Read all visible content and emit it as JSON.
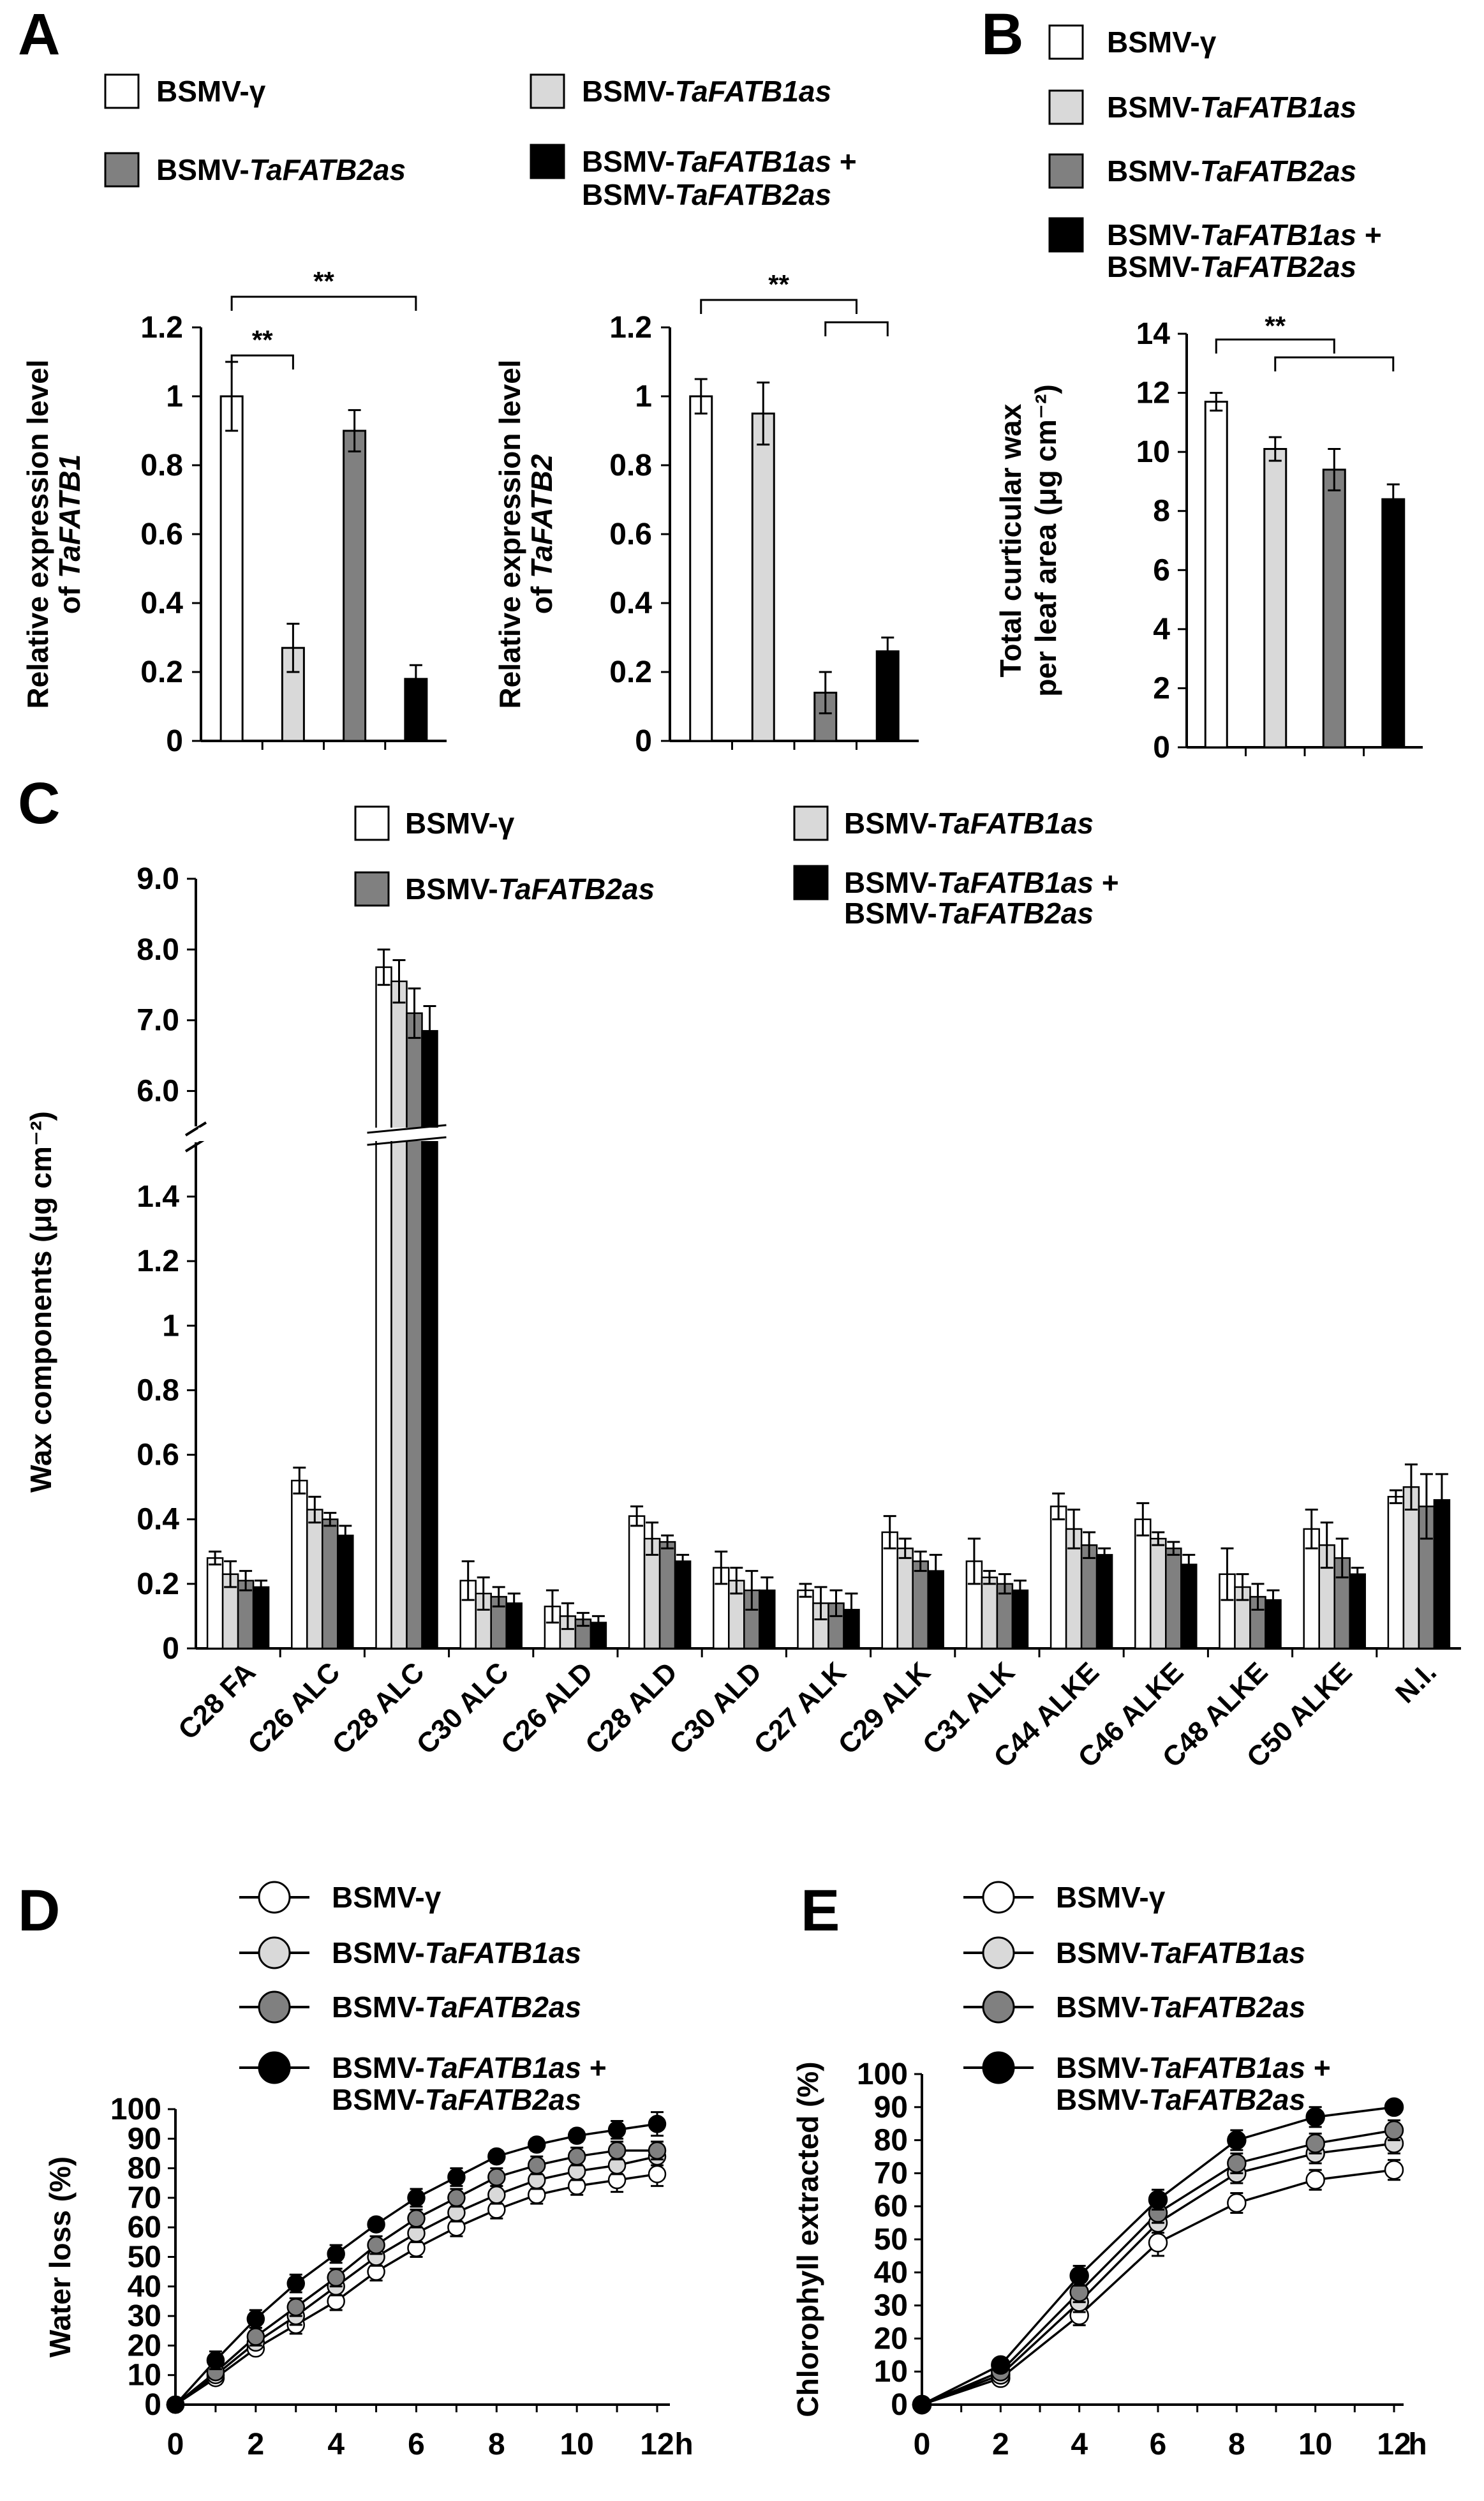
{
  "colors": {
    "BSMV-γ": "#ffffff",
    "BSMV-TaFATB1as": "#d9d9d9",
    "BSMV-TaFATB2as": "#808080",
    "BSMV-TaFATB1as+BSMV-TaFATB2as": "#000000"
  },
  "chart_data": [
    {
      "panel": "A",
      "type": "bar",
      "legend": [
        {
          "name_plain": "BSMV-",
          "name_ital": "γ",
          "name2_plain": "",
          "name2_ital": ""
        },
        {
          "name_plain": "BSMV-",
          "name_ital": "TaFATB1as",
          "name2_plain": "",
          "name2_ital": ""
        },
        {
          "name_plain": "BSMV-",
          "name_ital": "TaFATB2as",
          "name2_plain": "",
          "name2_ital": ""
        },
        {
          "name_plain": "BSMV-",
          "name_ital": "TaFATB1as",
          "name_suffix": " +",
          "name2_plain": "BSMV-",
          "name2_ital": "TaFATB2as"
        }
      ],
      "subcharts": [
        {
          "ylabel_line1": "Relative expression level",
          "ylabel_line2_plain": "of ",
          "ylabel_line2_ital": "TaFATB1",
          "ylim": [
            0,
            1.2
          ],
          "ticks": [
            "0",
            "0.2",
            "0.4",
            "0.6",
            "0.8",
            "1",
            "1.2"
          ],
          "series": [
            {
              "name": "BSMV-γ",
              "value": 1.0,
              "err": 0.1
            },
            {
              "name": "BSMV-TaFATB1as",
              "value": 0.27,
              "err": 0.07
            },
            {
              "name": "BSMV-TaFATB2as",
              "value": 0.9,
              "err": 0.06
            },
            {
              "name": "BSMV-TaFATB1as+BSMV-TaFATB2as",
              "value": 0.18,
              "err": 0.04
            }
          ],
          "significance": [
            "**",
            "**"
          ]
        },
        {
          "ylabel_line1": "Relative expression level",
          "ylabel_line2_plain": "of ",
          "ylabel_line2_ital": "TaFATB2",
          "ylim": [
            0,
            1.2
          ],
          "ticks": [
            "0",
            "0.2",
            "0.4",
            "0.6",
            "0.8",
            "1",
            "1.2"
          ],
          "series": [
            {
              "name": "BSMV-γ",
              "value": 1.0,
              "err": 0.05
            },
            {
              "name": "BSMV-TaFATB1as",
              "value": 0.95,
              "err": 0.09
            },
            {
              "name": "BSMV-TaFATB2as",
              "value": 0.14,
              "err": 0.06
            },
            {
              "name": "BSMV-TaFATB1as+BSMV-TaFATB2as",
              "value": 0.26,
              "err": 0.04
            }
          ],
          "significance": [
            "**"
          ]
        }
      ]
    },
    {
      "panel": "B",
      "type": "bar",
      "ylabel_line1": "Total curticular wax",
      "ylabel_line2": "per leaf area  (μg cm⁻²)",
      "ylim": [
        0,
        14
      ],
      "ticks": [
        "0",
        "2",
        "4",
        "6",
        "8",
        "10",
        "12",
        "14"
      ],
      "series": [
        {
          "name": "BSMV-γ",
          "value": 11.7,
          "err": 0.3
        },
        {
          "name": "BSMV-TaFATB1as",
          "value": 10.1,
          "err": 0.4
        },
        {
          "name": "BSMV-TaFATB2as",
          "value": 9.4,
          "err": 0.7
        },
        {
          "name": "BSMV-TaFATB1as+BSMV-TaFATB2as",
          "value": 8.4,
          "err": 0.5
        }
      ],
      "significance": [
        "**"
      ]
    },
    {
      "panel": "C",
      "type": "bar",
      "ylabel": "Wax components (μg cm⁻²)",
      "ylim_lower": [
        0,
        1.5
      ],
      "ylim_upper": [
        5.5,
        9.0
      ],
      "ticks_lower": [
        "0",
        "0.2",
        "0.4",
        "0.6",
        "0.8",
        "1",
        "1.2",
        "1.4"
      ],
      "ticks_upper": [
        "6.0",
        "7.0",
        "8.0",
        "9.0"
      ],
      "categories": [
        "C28 FA",
        "C26 ALC",
        "C28 ALC",
        "C30 ALC",
        "C26 ALD",
        "C28 ALD",
        "C30 ALD",
        "C27 ALK",
        "C29 ALK",
        "C31 ALK",
        "C44 ALKE",
        "C46 ALKE",
        "C48 ALKE",
        "C50 ALKE",
        "N.I."
      ],
      "series": [
        {
          "name": "BSMV-γ",
          "values": [
            0.28,
            0.52,
            7.75,
            0.21,
            0.13,
            0.41,
            0.25,
            0.18,
            0.36,
            0.27,
            0.44,
            0.4,
            0.23,
            0.37,
            0.47
          ],
          "err": [
            0.02,
            0.04,
            0.25,
            0.06,
            0.05,
            0.03,
            0.05,
            0.02,
            0.05,
            0.07,
            0.04,
            0.05,
            0.08,
            0.06,
            0.02
          ]
        },
        {
          "name": "BSMV-TaFATB1as",
          "values": [
            0.23,
            0.43,
            7.55,
            0.17,
            0.1,
            0.34,
            0.21,
            0.14,
            0.31,
            0.22,
            0.37,
            0.34,
            0.19,
            0.32,
            0.5
          ],
          "err": [
            0.04,
            0.04,
            0.3,
            0.05,
            0.04,
            0.05,
            0.04,
            0.05,
            0.03,
            0.02,
            0.06,
            0.02,
            0.04,
            0.07,
            0.07
          ]
        },
        {
          "name": "BSMV-TaFATB2as",
          "values": [
            0.21,
            0.4,
            7.1,
            0.16,
            0.09,
            0.33,
            0.18,
            0.14,
            0.27,
            0.2,
            0.32,
            0.31,
            0.16,
            0.28,
            0.44
          ],
          "err": [
            0.03,
            0.02,
            0.35,
            0.03,
            0.02,
            0.02,
            0.06,
            0.04,
            0.03,
            0.03,
            0.04,
            0.02,
            0.04,
            0.06,
            0.1
          ]
        },
        {
          "name": "BSMV-TaFATB1as+BSMV-TaFATB2as",
          "values": [
            0.19,
            0.35,
            6.85,
            0.14,
            0.08,
            0.27,
            0.18,
            0.12,
            0.24,
            0.18,
            0.29,
            0.26,
            0.15,
            0.23,
            0.46
          ],
          "err": [
            0.02,
            0.03,
            0.35,
            0.03,
            0.02,
            0.02,
            0.04,
            0.05,
            0.05,
            0.03,
            0.02,
            0.03,
            0.03,
            0.02,
            0.08
          ]
        }
      ]
    },
    {
      "panel": "D",
      "type": "line",
      "ylabel": "Water loss (%)",
      "xunit": "h",
      "xlim": [
        0,
        12
      ],
      "ylim": [
        0,
        100
      ],
      "xticks": [
        "0",
        "2",
        "4",
        "6",
        "8",
        "10",
        "12"
      ],
      "yticks": [
        "0",
        "10",
        "20",
        "30",
        "40",
        "50",
        "60",
        "70",
        "80",
        "90",
        "100"
      ],
      "x": [
        0,
        1,
        2,
        3,
        4,
        5,
        6,
        7,
        8,
        9,
        10,
        11,
        12
      ],
      "series": [
        {
          "name": "BSMV-γ",
          "values": [
            0,
            9,
            19,
            27,
            35,
            45,
            53,
            60,
            66,
            71,
            74,
            76,
            78
          ],
          "err": [
            0,
            2,
            2,
            3,
            3,
            3,
            3,
            3,
            3,
            3,
            3,
            4,
            4
          ]
        },
        {
          "name": "BSMV-TaFATB1as",
          "values": [
            0,
            10,
            21,
            30,
            40,
            50,
            58,
            65,
            71,
            76,
            79,
            81,
            84
          ],
          "err": [
            0,
            2,
            2,
            3,
            3,
            3,
            3,
            3,
            3,
            3,
            3,
            3,
            3
          ]
        },
        {
          "name": "BSMV-TaFATB2as",
          "values": [
            0,
            11,
            23,
            33,
            43,
            54,
            63,
            70,
            77,
            81,
            84,
            86,
            86
          ],
          "err": [
            0,
            2,
            3,
            3,
            3,
            3,
            3,
            3,
            3,
            3,
            3,
            3,
            3
          ]
        },
        {
          "name": "BSMV-TaFATB1as+BSMV-TaFATB2as",
          "values": [
            0,
            15,
            29,
            41,
            51,
            61,
            70,
            77,
            84,
            88,
            91,
            93,
            95
          ],
          "err": [
            0,
            3,
            3,
            3,
            3,
            2,
            3,
            3,
            2,
            2,
            2,
            3,
            4
          ]
        }
      ]
    },
    {
      "panel": "E",
      "type": "line",
      "ylabel": "Chlorophyll extracted (%)",
      "xunit": "h",
      "xlim": [
        0,
        12
      ],
      "ylim": [
        0,
        100
      ],
      "xticks": [
        "0",
        "2",
        "4",
        "6",
        "8",
        "10",
        "12"
      ],
      "yticks": [
        "0",
        "10",
        "20",
        "30",
        "40",
        "50",
        "60",
        "70",
        "80",
        "90",
        "100"
      ],
      "x": [
        0,
        2,
        4,
        6,
        8,
        10,
        12
      ],
      "series": [
        {
          "name": "BSMV-γ",
          "values": [
            0,
            8,
            27,
            49,
            61,
            68,
            71
          ],
          "err": [
            0,
            2,
            3,
            4,
            3,
            3,
            3
          ]
        },
        {
          "name": "BSMV-TaFATB1as",
          "values": [
            0,
            9,
            31,
            55,
            70,
            76,
            79
          ],
          "err": [
            0,
            2,
            3,
            3,
            3,
            3,
            3
          ]
        },
        {
          "name": "BSMV-TaFATB2as",
          "values": [
            0,
            10,
            34,
            58,
            73,
            79,
            83
          ],
          "err": [
            0,
            2,
            3,
            3,
            3,
            3,
            3
          ]
        },
        {
          "name": "BSMV-TaFATB1as+BSMV-TaFATB2as",
          "values": [
            0,
            12,
            39,
            62,
            80,
            87,
            90
          ],
          "err": [
            0,
            2,
            3,
            3,
            3,
            3,
            2
          ]
        }
      ]
    }
  ]
}
